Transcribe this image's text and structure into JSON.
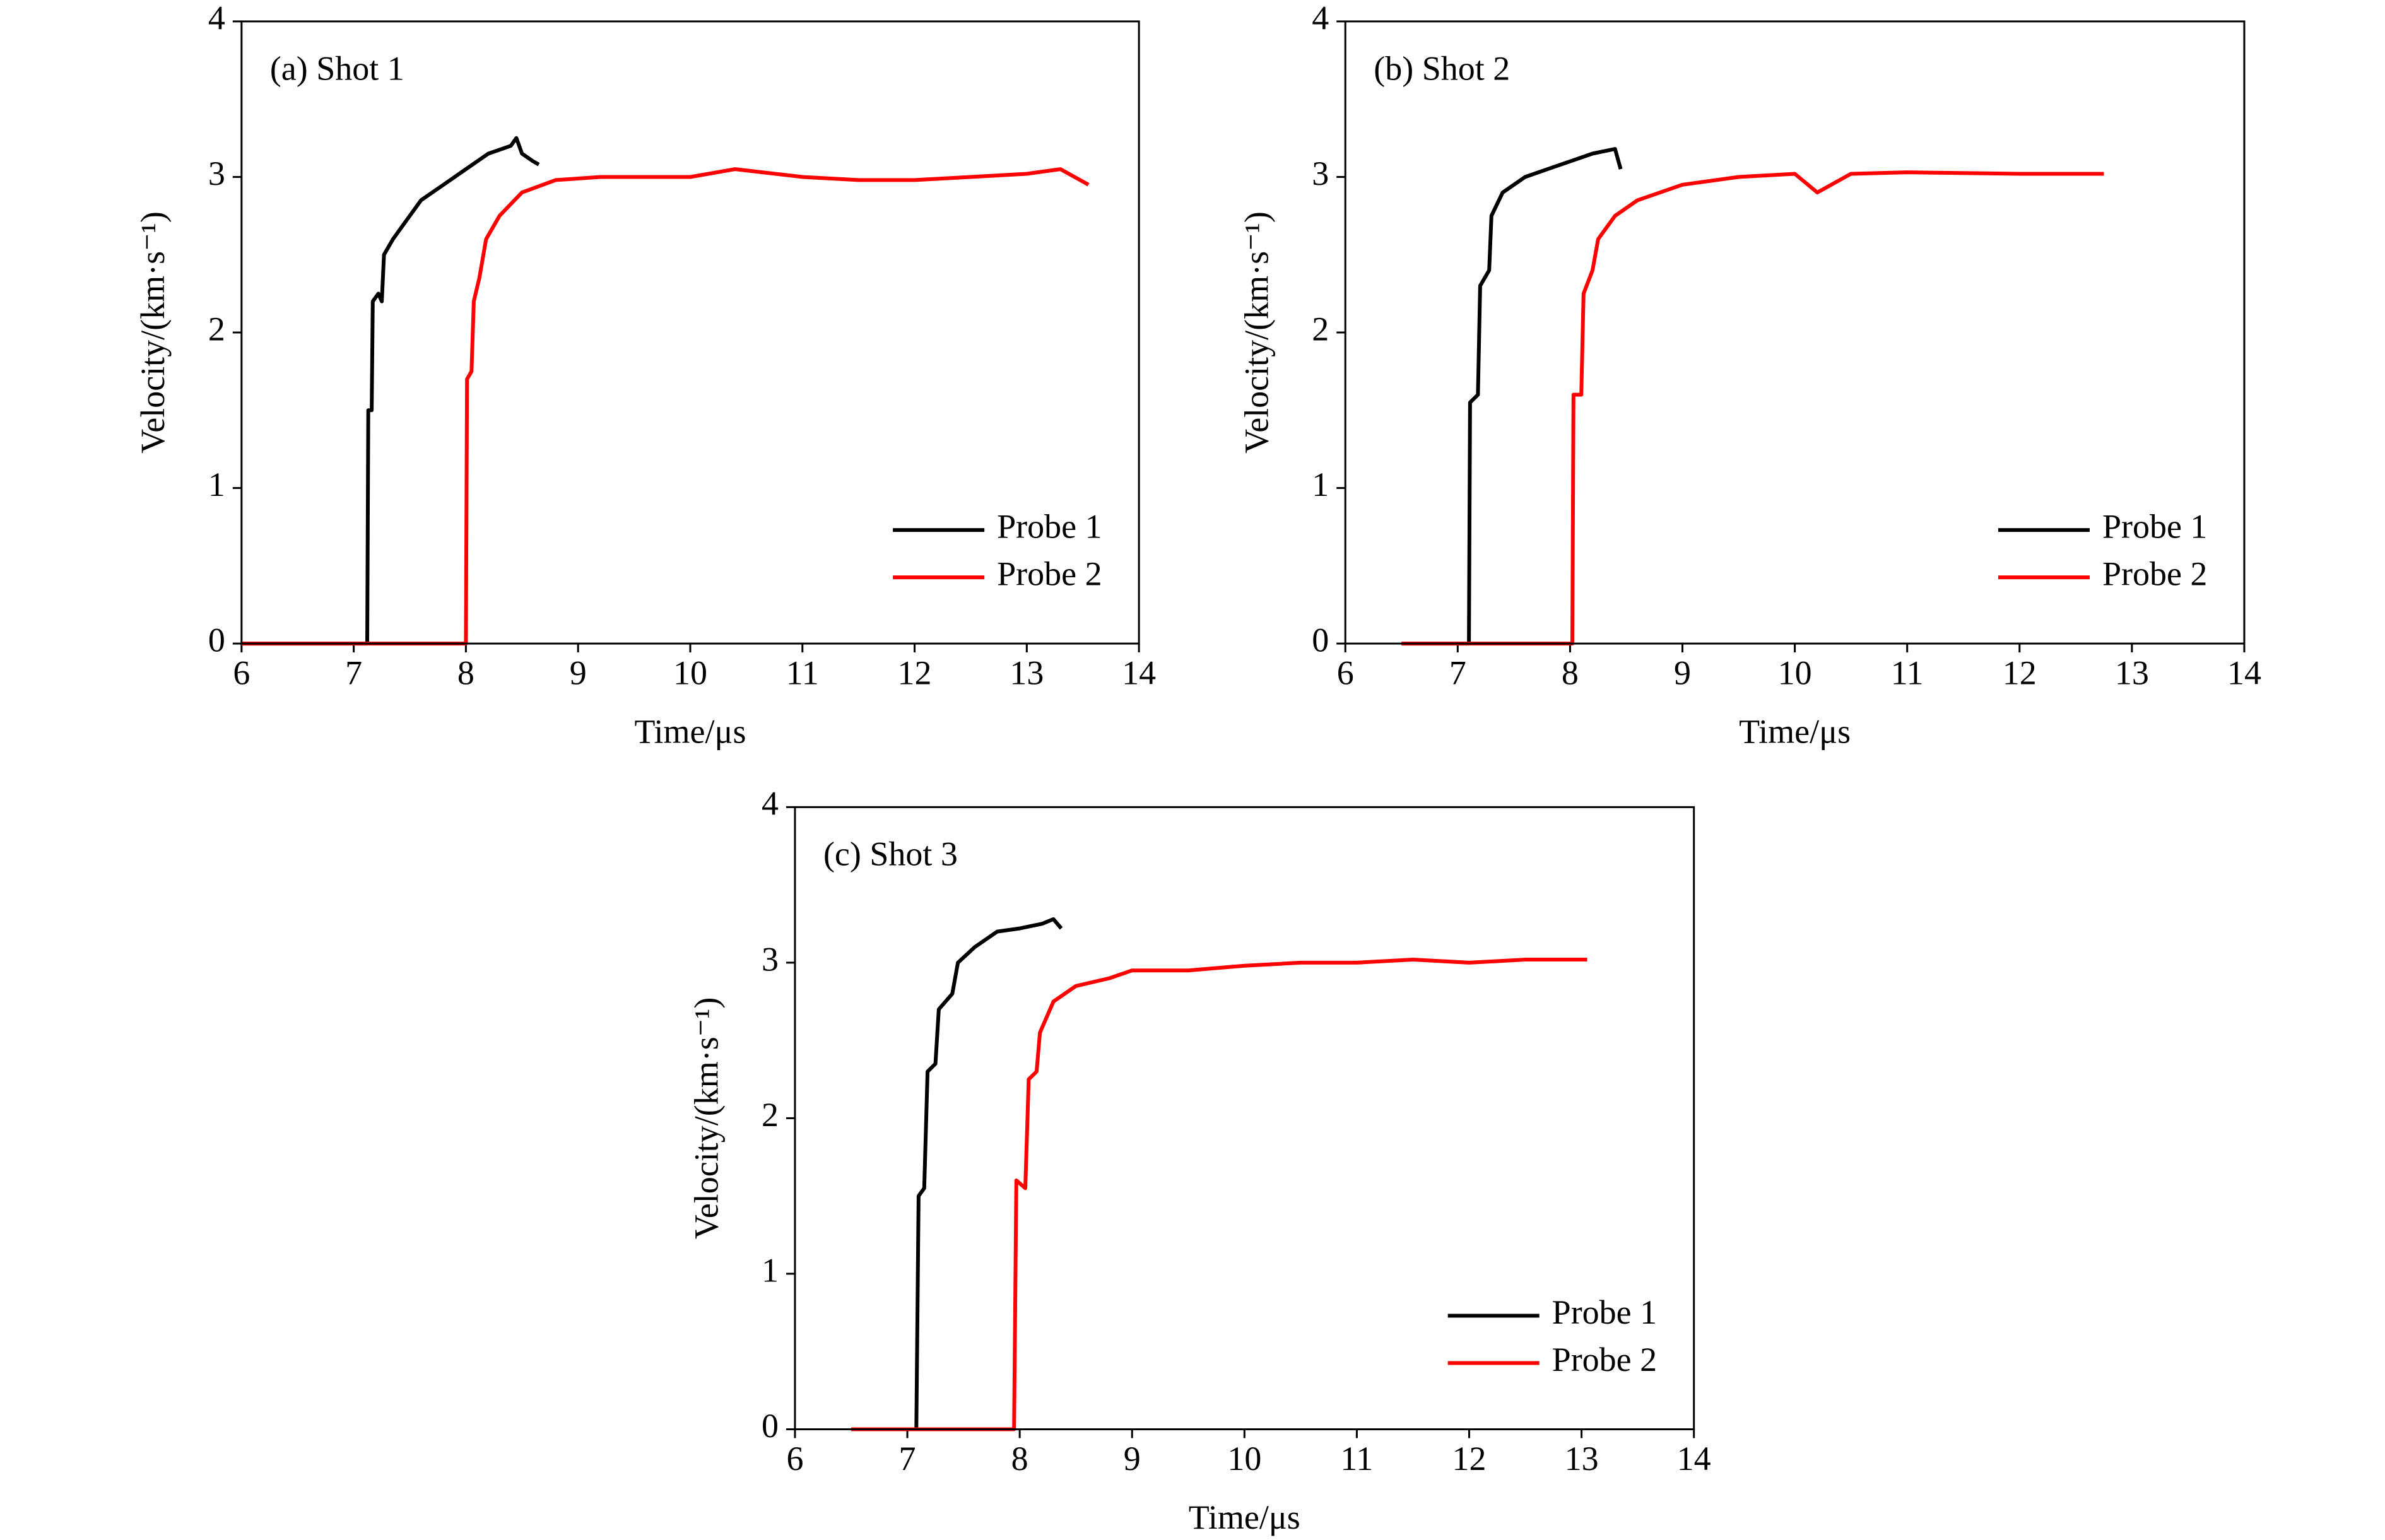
{
  "chart_data": [
    {
      "type": "line",
      "title": "(a) Shot 1",
      "x_label": "Time/μs",
      "y_label": "Velocity/(km·s⁻¹)",
      "xlim": [
        6,
        14
      ],
      "ylim": [
        0,
        4
      ],
      "xticks": [
        6,
        7,
        8,
        9,
        10,
        11,
        12,
        13,
        14
      ],
      "yticks": [
        0,
        1,
        2,
        3,
        4
      ],
      "legend": "lower right",
      "series": [
        {
          "name": "Probe 1",
          "color": "#000000",
          "x": [
            6,
            7.12,
            7.13,
            7.16,
            7.17,
            7.22,
            7.25,
            7.27,
            7.35,
            7.45,
            7.6,
            7.8,
            8.0,
            8.2,
            8.4,
            8.45,
            8.5,
            8.6,
            8.65
          ],
          "values": [
            0,
            0,
            1.5,
            1.5,
            2.2,
            2.25,
            2.2,
            2.5,
            2.6,
            2.7,
            2.85,
            2.95,
            3.05,
            3.15,
            3.2,
            3.25,
            3.15,
            3.1,
            3.08
          ]
        },
        {
          "name": "Probe 2",
          "color": "#ff0000",
          "x": [
            6,
            8.0,
            8.01,
            8.05,
            8.07,
            8.12,
            8.18,
            8.3,
            8.5,
            8.8,
            9.2,
            10,
            10.4,
            11,
            11.5,
            12,
            12.5,
            13,
            13.3,
            13.55
          ],
          "values": [
            0,
            0,
            1.7,
            1.75,
            2.2,
            2.35,
            2.6,
            2.75,
            2.9,
            2.98,
            3.0,
            3.0,
            3.05,
            3.0,
            2.98,
            2.98,
            3.0,
            3.02,
            3.05,
            2.95
          ]
        }
      ]
    },
    {
      "type": "line",
      "title": "(b) Shot 2",
      "x_label": "Time/μs",
      "y_label": "Velocity/(km·s⁻¹)",
      "xlim": [
        6,
        14
      ],
      "ylim": [
        0,
        4
      ],
      "xticks": [
        6,
        7,
        8,
        9,
        10,
        11,
        12,
        13,
        14
      ],
      "yticks": [
        0,
        1,
        2,
        3,
        4
      ],
      "legend": "lower right",
      "series": [
        {
          "name": "Probe 1",
          "color": "#000000",
          "x": [
            6.5,
            7.1,
            7.11,
            7.18,
            7.2,
            7.28,
            7.3,
            7.4,
            7.6,
            7.8,
            8.0,
            8.2,
            8.4,
            8.45
          ],
          "values": [
            0,
            0,
            1.55,
            1.6,
            2.3,
            2.4,
            2.75,
            2.9,
            3.0,
            3.05,
            3.1,
            3.15,
            3.18,
            3.05
          ]
        },
        {
          "name": "Probe 2",
          "color": "#ff0000",
          "x": [
            6.5,
            8.02,
            8.03,
            8.1,
            8.12,
            8.2,
            8.25,
            8.4,
            8.6,
            9,
            9.5,
            10,
            10.2,
            10.5,
            11,
            12,
            12.75
          ],
          "values": [
            0,
            0,
            1.6,
            1.6,
            2.25,
            2.4,
            2.6,
            2.75,
            2.85,
            2.95,
            3.0,
            3.02,
            2.9,
            3.02,
            3.03,
            3.02,
            3.02
          ]
        }
      ]
    },
    {
      "type": "line",
      "title": "(c) Shot 3",
      "x_label": "Time/μs",
      "y_label": "Velocity/(km·s⁻¹)",
      "xlim": [
        6,
        14
      ],
      "ylim": [
        0,
        4
      ],
      "xticks": [
        6,
        7,
        8,
        9,
        10,
        11,
        12,
        13,
        14
      ],
      "yticks": [
        0,
        1,
        2,
        3,
        4
      ],
      "legend": "lower right",
      "series": [
        {
          "name": "Probe 1",
          "color": "#000000",
          "x": [
            6.5,
            7.08,
            7.1,
            7.15,
            7.18,
            7.25,
            7.28,
            7.4,
            7.45,
            7.6,
            7.8,
            8.0,
            8.2,
            8.3,
            8.37
          ],
          "values": [
            0,
            0,
            1.5,
            1.55,
            2.3,
            2.35,
            2.7,
            2.8,
            3.0,
            3.1,
            3.2,
            3.22,
            3.25,
            3.28,
            3.22
          ]
        },
        {
          "name": "Probe 2",
          "color": "#ff0000",
          "x": [
            6.5,
            7.95,
            7.97,
            8.05,
            8.08,
            8.15,
            8.18,
            8.3,
            8.5,
            8.8,
            9,
            9.5,
            10,
            10.5,
            11,
            11.5,
            12,
            12.5,
            13.05
          ],
          "values": [
            0,
            0,
            1.6,
            1.55,
            2.25,
            2.3,
            2.55,
            2.75,
            2.85,
            2.9,
            2.95,
            2.95,
            2.98,
            3.0,
            3.0,
            3.02,
            3.0,
            3.02,
            3.02
          ]
        }
      ]
    }
  ]
}
